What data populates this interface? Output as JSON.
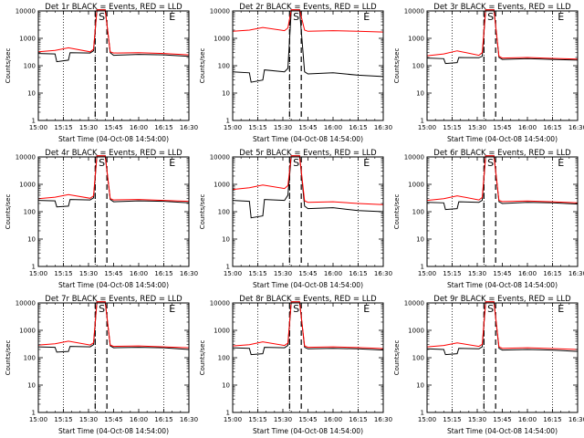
{
  "colors": {
    "events": "#000000",
    "lld": "#ff0000",
    "axis": "#000000"
  },
  "chart_data": [
    {
      "type": "line",
      "title": "Det 1r BLACK = Events, RED = LLD",
      "xlabel": "Start Time (04-Oct-08 14:54:00)",
      "ylabel": "Counts/sec",
      "x_tick_labels": [
        "15:00",
        "15:15",
        "15:30",
        "15:45",
        "16:00",
        "16:15",
        "16:30"
      ],
      "y_tick_labels": [
        "1",
        "10",
        "100",
        "1000",
        "10000"
      ],
      "y_scale": "log",
      "ylim": [
        1,
        10000
      ],
      "xlim": [
        "15:00",
        "16:30"
      ],
      "markers": [
        {
          "label": "S",
          "time": "15:38"
        },
        {
          "label": "E",
          "time": "16:20"
        }
      ],
      "dotted_lines": [
        "15:15",
        "15:34",
        "16:15"
      ],
      "dashed_lines": [
        "15:34",
        "15:41"
      ],
      "series": [
        {
          "name": "Events",
          "color": "#000000",
          "x": [
            "15:00",
            "15:10",
            "15:11",
            "15:18",
            "15:19",
            "15:31",
            "15:33",
            "15:35",
            "15:40",
            "15:43",
            "15:45",
            "16:00",
            "16:15",
            "16:30"
          ],
          "y": [
            280,
            270,
            140,
            160,
            300,
            290,
            350,
            11000,
            11000,
            300,
            240,
            260,
            250,
            220
          ]
        },
        {
          "name": "LLD",
          "color": "#ff0000",
          "x": [
            "15:00",
            "15:10",
            "15:18",
            "15:31",
            "15:33",
            "15:35",
            "15:40",
            "15:43",
            "15:45",
            "16:00",
            "16:15",
            "16:30"
          ],
          "y": [
            320,
            360,
            450,
            320,
            400,
            11000,
            11000,
            320,
            290,
            300,
            280,
            250
          ]
        }
      ]
    },
    {
      "type": "line",
      "title": "Det 2r BLACK = Events, RED = LLD",
      "xlabel": "Start Time (04-Oct-08 14:54:00)",
      "ylabel": "Counts/sec",
      "x_tick_labels": [
        "15:00",
        "15:15",
        "15:30",
        "15:45",
        "16:00",
        "16:15",
        "16:30"
      ],
      "y_tick_labels": [
        "1",
        "10",
        "100",
        "1000",
        "10000"
      ],
      "y_scale": "log",
      "ylim": [
        1,
        10000
      ],
      "xlim": [
        "15:00",
        "16:30"
      ],
      "markers": [
        {
          "label": "S",
          "time": "15:38"
        },
        {
          "label": "E",
          "time": "16:20"
        }
      ],
      "dotted_lines": [
        "15:15",
        "15:34",
        "16:15"
      ],
      "dashed_lines": [
        "15:34",
        "15:41"
      ],
      "series": [
        {
          "name": "Events",
          "color": "#000000",
          "x": [
            "15:00",
            "15:10",
            "15:11",
            "15:18",
            "15:19",
            "15:31",
            "15:33",
            "15:35",
            "15:40",
            "15:43",
            "15:45",
            "16:00",
            "16:15",
            "16:30"
          ],
          "y": [
            60,
            55,
            25,
            30,
            70,
            60,
            80,
            11000,
            11000,
            60,
            50,
            55,
            45,
            40
          ]
        },
        {
          "name": "LLD",
          "color": "#ff0000",
          "x": [
            "15:00",
            "15:10",
            "15:18",
            "15:31",
            "15:33",
            "15:35",
            "15:40",
            "15:43",
            "15:45",
            "16:00",
            "16:15",
            "16:30"
          ],
          "y": [
            1800,
            2000,
            2500,
            1900,
            2400,
            11000,
            11000,
            2000,
            1800,
            1900,
            1800,
            1700
          ]
        }
      ]
    },
    {
      "type": "line",
      "title": "Det 3r BLACK = Events, RED = LLD",
      "xlabel": "Start Time (04-Oct-08 14:54:00)",
      "ylabel": "Counts/sec",
      "x_tick_labels": [
        "15:00",
        "15:15",
        "15:30",
        "15:45",
        "16:00",
        "16:15",
        "16:30"
      ],
      "y_tick_labels": [
        "1",
        "10",
        "100",
        "1000",
        "10000"
      ],
      "y_scale": "log",
      "ylim": [
        1,
        10000
      ],
      "xlim": [
        "15:00",
        "16:30"
      ],
      "markers": [
        {
          "label": "S",
          "time": "15:38"
        },
        {
          "label": "E",
          "time": "16:20"
        }
      ],
      "dotted_lines": [
        "15:15",
        "15:34",
        "16:15"
      ],
      "dashed_lines": [
        "15:34",
        "15:41"
      ],
      "series": [
        {
          "name": "Events",
          "color": "#000000",
          "x": [
            "15:00",
            "15:10",
            "15:11",
            "15:18",
            "15:19",
            "15:31",
            "15:33",
            "15:35",
            "15:40",
            "15:43",
            "15:45",
            "16:00",
            "16:15",
            "16:30"
          ],
          "y": [
            190,
            180,
            120,
            130,
            200,
            195,
            220,
            11000,
            11000,
            200,
            170,
            180,
            170,
            160
          ]
        },
        {
          "name": "LLD",
          "color": "#ff0000",
          "x": [
            "15:00",
            "15:10",
            "15:18",
            "15:31",
            "15:33",
            "15:35",
            "15:40",
            "15:43",
            "15:45",
            "16:00",
            "16:15",
            "16:30"
          ],
          "y": [
            230,
            270,
            350,
            240,
            300,
            11000,
            11000,
            220,
            190,
            200,
            185,
            175
          ]
        }
      ]
    },
    {
      "type": "line",
      "title": "Det 4r BLACK = Events, RED = LLD",
      "xlabel": "Start Time (04-Oct-08 14:54:00)",
      "ylabel": "Counts/sec",
      "x_tick_labels": [
        "15:00",
        "15:15",
        "15:30",
        "15:45",
        "16:00",
        "16:15",
        "16:30"
      ],
      "y_tick_labels": [
        "1",
        "10",
        "100",
        "1000",
        "10000"
      ],
      "y_scale": "log",
      "ylim": [
        1,
        10000
      ],
      "xlim": [
        "15:00",
        "16:30"
      ],
      "markers": [
        {
          "label": "S",
          "time": "15:38"
        },
        {
          "label": "E",
          "time": "16:20"
        }
      ],
      "dotted_lines": [
        "15:15",
        "15:34",
        "16:15"
      ],
      "dashed_lines": [
        "15:34",
        "15:41"
      ],
      "series": [
        {
          "name": "Events",
          "color": "#000000",
          "x": [
            "15:00",
            "15:10",
            "15:11",
            "15:18",
            "15:19",
            "15:31",
            "15:33",
            "15:35",
            "15:40",
            "15:43",
            "15:45",
            "16:00",
            "16:15",
            "16:30"
          ],
          "y": [
            260,
            250,
            150,
            160,
            280,
            270,
            320,
            11000,
            11000,
            280,
            230,
            250,
            240,
            210
          ]
        },
        {
          "name": "LLD",
          "color": "#ff0000",
          "x": [
            "15:00",
            "15:10",
            "15:18",
            "15:31",
            "15:33",
            "15:35",
            "15:40",
            "15:43",
            "15:45",
            "16:00",
            "16:15",
            "16:30"
          ],
          "y": [
            300,
            340,
            420,
            310,
            380,
            11000,
            11000,
            300,
            270,
            280,
            260,
            240
          ]
        }
      ]
    },
    {
      "type": "line",
      "title": "Det 5r BLACK = Events, RED = LLD",
      "xlabel": "Start Time (04-Oct-08 14:54:00)",
      "ylabel": "Counts/sec",
      "x_tick_labels": [
        "15:00",
        "15:15",
        "15:30",
        "15:45",
        "16:00",
        "16:15",
        "16:30"
      ],
      "y_tick_labels": [
        "1",
        "10",
        "100",
        "1000",
        "10000"
      ],
      "y_scale": "log",
      "ylim": [
        1,
        10000
      ],
      "xlim": [
        "15:00",
        "16:30"
      ],
      "markers": [
        {
          "label": "S",
          "time": "15:38"
        },
        {
          "label": "E",
          "time": "16:20"
        }
      ],
      "dotted_lines": [
        "15:15",
        "15:34",
        "16:15"
      ],
      "dashed_lines": [
        "15:34",
        "15:41"
      ],
      "series": [
        {
          "name": "Events",
          "color": "#000000",
          "x": [
            "15:00",
            "15:10",
            "15:11",
            "15:18",
            "15:19",
            "15:31",
            "15:33",
            "15:35",
            "15:40",
            "15:43",
            "15:45",
            "16:00",
            "16:15",
            "16:30"
          ],
          "y": [
            260,
            240,
            60,
            70,
            280,
            260,
            400,
            11000,
            11000,
            160,
            130,
            140,
            110,
            100
          ]
        },
        {
          "name": "LLD",
          "color": "#ff0000",
          "x": [
            "15:00",
            "15:10",
            "15:18",
            "15:31",
            "15:33",
            "15:35",
            "15:40",
            "15:43",
            "15:45",
            "16:00",
            "16:15",
            "16:30"
          ],
          "y": [
            650,
            750,
            950,
            700,
            900,
            11000,
            11000,
            250,
            220,
            230,
            200,
            180
          ]
        }
      ]
    },
    {
      "type": "line",
      "title": "Det 6r BLACK = Events, RED = LLD",
      "xlabel": "Start Time (04-Oct-08 14:54:00)",
      "ylabel": "Counts/sec",
      "x_tick_labels": [
        "15:00",
        "15:15",
        "15:30",
        "15:45",
        "16:00",
        "16:15",
        "16:30"
      ],
      "y_tick_labels": [
        "1",
        "10",
        "100",
        "1000",
        "10000"
      ],
      "y_scale": "log",
      "ylim": [
        1,
        10000
      ],
      "xlim": [
        "15:00",
        "16:30"
      ],
      "markers": [
        {
          "label": "S",
          "time": "15:38"
        },
        {
          "label": "E",
          "time": "16:20"
        }
      ],
      "dotted_lines": [
        "15:15",
        "15:34",
        "16:15"
      ],
      "dashed_lines": [
        "15:34",
        "15:41"
      ],
      "series": [
        {
          "name": "Events",
          "color": "#000000",
          "x": [
            "15:00",
            "15:10",
            "15:11",
            "15:18",
            "15:19",
            "15:31",
            "15:33",
            "15:35",
            "15:40",
            "15:43",
            "15:45",
            "16:00",
            "16:15",
            "16:30"
          ],
          "y": [
            220,
            210,
            120,
            130,
            230,
            220,
            260,
            11000,
            11000,
            230,
            200,
            220,
            210,
            190
          ]
        },
        {
          "name": "LLD",
          "color": "#ff0000",
          "x": [
            "15:00",
            "15:10",
            "15:18",
            "15:31",
            "15:33",
            "15:35",
            "15:40",
            "15:43",
            "15:45",
            "16:00",
            "16:15",
            "16:30"
          ],
          "y": [
            260,
            300,
            380,
            270,
            330,
            11000,
            11000,
            260,
            235,
            245,
            230,
            210
          ]
        }
      ]
    },
    {
      "type": "line",
      "title": "Det 7r BLACK = Events, RED = LLD",
      "xlabel": "Start Time (04-Oct-08 14:54:00)",
      "ylabel": "Counts/sec",
      "x_tick_labels": [
        "15:00",
        "15:15",
        "15:30",
        "15:45",
        "16:00",
        "16:15",
        "16:30"
      ],
      "y_tick_labels": [
        "1",
        "10",
        "100",
        "1000",
        "10000"
      ],
      "y_scale": "log",
      "ylim": [
        1,
        10000
      ],
      "xlim": [
        "15:00",
        "16:30"
      ],
      "markers": [
        {
          "label": "S",
          "time": "15:38"
        },
        {
          "label": "E",
          "time": "16:20"
        }
      ],
      "dotted_lines": [
        "15:15",
        "15:34",
        "16:15"
      ],
      "dashed_lines": [
        "15:34",
        "15:41"
      ],
      "series": [
        {
          "name": "Events",
          "color": "#000000",
          "x": [
            "15:00",
            "15:10",
            "15:11",
            "15:18",
            "15:19",
            "15:31",
            "15:33",
            "15:35",
            "15:40",
            "15:43",
            "15:45",
            "16:00",
            "16:15",
            "16:30"
          ],
          "y": [
            250,
            240,
            160,
            170,
            260,
            250,
            300,
            11000,
            11000,
            270,
            230,
            240,
            230,
            200
          ]
        },
        {
          "name": "LLD",
          "color": "#ff0000",
          "x": [
            "15:00",
            "15:10",
            "15:18",
            "15:31",
            "15:33",
            "15:35",
            "15:40",
            "15:43",
            "15:45",
            "16:00",
            "16:15",
            "16:30"
          ],
          "y": [
            290,
            320,
            400,
            290,
            350,
            11000,
            11000,
            290,
            260,
            270,
            250,
            230
          ]
        }
      ]
    },
    {
      "type": "line",
      "title": "Det 8r BLACK = Events, RED = LLD",
      "xlabel": "Start Time (04-Oct-08 14:54:00)",
      "ylabel": "Counts/sec",
      "x_tick_labels": [
        "15:00",
        "15:15",
        "15:30",
        "15:45",
        "16:00",
        "16:15",
        "16:30"
      ],
      "y_tick_labels": [
        "1",
        "10",
        "100",
        "1000",
        "10000"
      ],
      "y_scale": "log",
      "ylim": [
        1,
        10000
      ],
      "xlim": [
        "15:00",
        "16:30"
      ],
      "markers": [
        {
          "label": "S",
          "time": "15:38"
        },
        {
          "label": "E",
          "time": "16:20"
        }
      ],
      "dotted_lines": [
        "15:15",
        "15:34",
        "16:15"
      ],
      "dashed_lines": [
        "15:34",
        "15:41"
      ],
      "series": [
        {
          "name": "Events",
          "color": "#000000",
          "x": [
            "15:00",
            "15:10",
            "15:11",
            "15:18",
            "15:19",
            "15:31",
            "15:33",
            "15:35",
            "15:40",
            "15:43",
            "15:45",
            "16:00",
            "16:15",
            "16:30"
          ],
          "y": [
            230,
            220,
            130,
            140,
            240,
            230,
            280,
            11000,
            11000,
            240,
            210,
            220,
            210,
            190
          ]
        },
        {
          "name": "LLD",
          "color": "#ff0000",
          "x": [
            "15:00",
            "15:10",
            "15:18",
            "15:31",
            "15:33",
            "15:35",
            "15:40",
            "15:43",
            "15:45",
            "16:00",
            "16:15",
            "16:30"
          ],
          "y": [
            270,
            300,
            380,
            280,
            340,
            11000,
            11000,
            270,
            240,
            250,
            235,
            215
          ]
        }
      ]
    },
    {
      "type": "line",
      "title": "Det 9r BLACK = Events, RED = LLD",
      "xlabel": "Start Time (04-Oct-08 14:54:00)",
      "ylabel": "Counts/sec",
      "x_tick_labels": [
        "15:00",
        "15:15",
        "15:30",
        "15:45",
        "16:00",
        "16:15",
        "16:30"
      ],
      "y_tick_labels": [
        "1",
        "10",
        "100",
        "1000",
        "10000"
      ],
      "y_scale": "log",
      "ylim": [
        1,
        10000
      ],
      "xlim": [
        "15:00",
        "16:30"
      ],
      "markers": [
        {
          "label": "S",
          "time": "15:38"
        },
        {
          "label": "E",
          "time": "16:20"
        }
      ],
      "dotted_lines": [
        "15:15",
        "15:34",
        "16:15"
      ],
      "dashed_lines": [
        "15:34",
        "15:41"
      ],
      "series": [
        {
          "name": "Events",
          "color": "#000000",
          "x": [
            "15:00",
            "15:10",
            "15:11",
            "15:18",
            "15:19",
            "15:31",
            "15:33",
            "15:35",
            "15:40",
            "15:43",
            "15:45",
            "16:00",
            "16:15",
            "16:30"
          ],
          "y": [
            210,
            200,
            130,
            140,
            220,
            210,
            250,
            11000,
            11000,
            220,
            190,
            200,
            190,
            170
          ]
        },
        {
          "name": "LLD",
          "color": "#ff0000",
          "x": [
            "15:00",
            "15:10",
            "15:18",
            "15:31",
            "15:33",
            "15:35",
            "15:40",
            "15:43",
            "15:45",
            "16:00",
            "16:15",
            "16:30"
          ],
          "y": [
            250,
            280,
            350,
            260,
            310,
            11000,
            11000,
            250,
            220,
            230,
            215,
            200
          ]
        }
      ]
    }
  ]
}
